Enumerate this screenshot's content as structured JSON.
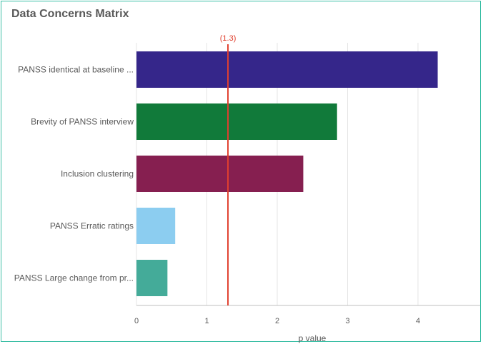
{
  "title": "Data Concerns Matrix",
  "chart_data": {
    "type": "bar",
    "orientation": "horizontal",
    "title": "Data Concerns Matrix",
    "xlabel": "p value",
    "ylabel": "",
    "xlim": [
      0,
      5
    ],
    "xticks": [
      "0",
      "1",
      "2",
      "3",
      "4"
    ],
    "categories": [
      "PANSS identical at baseline ...",
      "Brevity of PANSS interview",
      "Inclusion clustering",
      "PANSS Erratic ratings",
      "PANSS Large change from pr..."
    ],
    "values": [
      4.28,
      2.85,
      2.37,
      0.55,
      0.44
    ],
    "colors": [
      "#35268a",
      "#117a3a",
      "#861f50",
      "#8ccdf0",
      "#44ab99"
    ],
    "reference_line": {
      "value": 1.3,
      "label": "(1.3)",
      "color": "#e0402f"
    },
    "grid": true,
    "legend": "none"
  }
}
